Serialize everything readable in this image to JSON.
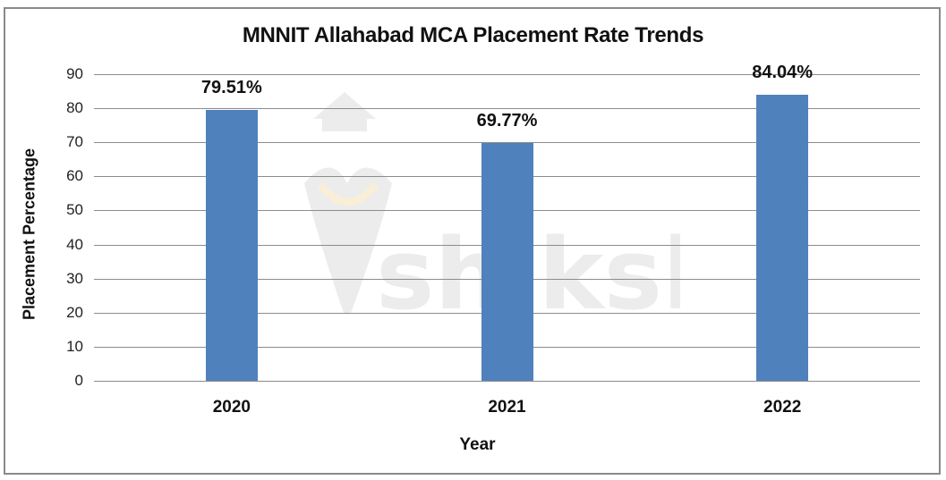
{
  "chart_data": {
    "type": "bar",
    "title": "MNNIT Allahabad MCA Placement Rate Trends",
    "xlabel": "Year",
    "ylabel": "Placement Percentage",
    "categories": [
      "2020",
      "2021",
      "2022"
    ],
    "values": [
      79.51,
      69.77,
      84.04
    ],
    "data_labels": [
      "79.51%",
      "69.77%",
      "84.04%"
    ],
    "ylim": [
      0,
      90
    ],
    "yticks": [
      "0",
      "10",
      "20",
      "30",
      "40",
      "50",
      "60",
      "70",
      "80",
      "90"
    ],
    "grid": true,
    "legend": null,
    "bar_color": "#4f81bd"
  },
  "watermark": {
    "text": "shiksha",
    "icon": "graduation-cap-pen-icon"
  }
}
